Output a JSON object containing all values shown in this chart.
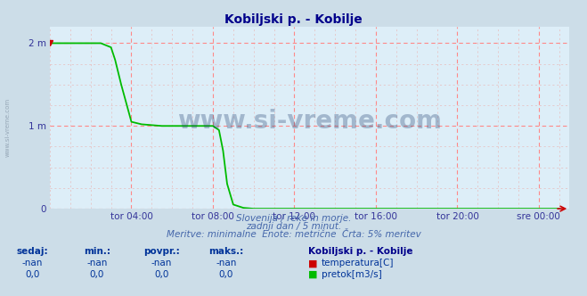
{
  "title": "Kobiljski p. - Kobilje",
  "title_color": "#00008B",
  "bg_color": "#ccdde8",
  "plot_bg_color": "#ddeef8",
  "grid_color_major": "#ff8888",
  "grid_color_minor": "#e8bbbb",
  "line_color_flow": "#00bb00",
  "line_color_temp": "#cc0000",
  "ylim": [
    0,
    2.2
  ],
  "yticks": [
    0,
    1,
    2
  ],
  "ytick_labels": [
    "0",
    "1 m",
    "2 m"
  ],
  "xtick_labels": [
    "tor 04:00",
    "tor 08:00",
    "tor 12:00",
    "tor 16:00",
    "tor 20:00",
    "sre 00:00"
  ],
  "xtick_positions": [
    4,
    8,
    12,
    16,
    20,
    24
  ],
  "xlim": [
    0,
    25.5
  ],
  "total_hours": 24,
  "watermark": "www.si-vreme.com",
  "watermark_color": "#1a3a6b",
  "subtitle1": "Slovenija / reke in morje.",
  "subtitle2": "zadnji dan / 5 minut.",
  "subtitle3": "Meritve: minimalne  Enote: metrične  Črta: 5% meritev",
  "subtitle_color": "#4466aa",
  "legend_title": "Kobiljski p. - Kobilje",
  "legend_title_color": "#00008B",
  "legend_items": [
    {
      "label": "temperatura[C]",
      "color": "#cc0000"
    },
    {
      "label": "pretok[m3/s]",
      "color": "#00bb00"
    }
  ],
  "table_headers": [
    "sedaj:",
    "min.:",
    "povpr.:",
    "maks.:"
  ],
  "table_values": [
    "-nan",
    "-nan",
    "-nan",
    "-nan"
  ],
  "table_values2": [
    "0,0",
    "0,0",
    "0,0",
    "0,0"
  ],
  "table_color": "#003399",
  "arrow_color": "#cc0000",
  "flow_x": [
    0,
    0.5,
    1.0,
    1.5,
    2.0,
    2.5,
    3.0,
    3.2,
    3.5,
    4.0,
    4.5,
    5.0,
    5.5,
    6.0,
    6.5,
    7.0,
    7.5,
    8.0,
    8.3,
    8.5,
    8.7,
    9.0,
    9.5,
    10,
    11,
    12,
    13,
    14,
    15,
    16,
    17,
    18,
    19,
    20,
    21,
    22,
    23,
    24,
    25
  ],
  "flow_y": [
    2.0,
    2.0,
    2.0,
    2.0,
    2.0,
    2.0,
    1.95,
    1.8,
    1.5,
    1.05,
    1.02,
    1.01,
    1.0,
    1.0,
    1.0,
    1.0,
    1.0,
    1.0,
    0.95,
    0.7,
    0.3,
    0.05,
    0.01,
    0.0,
    0.0,
    0.0,
    0.0,
    0.0,
    0.0,
    0.0,
    0.0,
    0.0,
    0.0,
    0.0,
    0.0,
    0.0,
    0.0,
    0.0,
    0.0
  ]
}
